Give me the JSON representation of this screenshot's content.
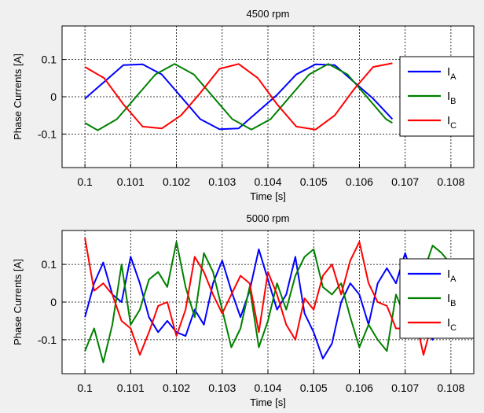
{
  "chart_data": [
    {
      "type": "line",
      "title": "4500 rpm",
      "xlabel": "Time [s]",
      "ylabel": "Phase Currents [A]",
      "xlim": [
        0.0995,
        0.1085
      ],
      "ylim": [
        -0.19,
        0.19
      ],
      "xticks": [
        0.1,
        0.101,
        0.102,
        0.103,
        0.104,
        0.105,
        0.106,
        0.107,
        0.108
      ],
      "xtick_labels": [
        "0.1",
        "0.101",
        "0.102",
        "0.103",
        "0.104",
        "0.105",
        "0.106",
        "0.107",
        "0.108"
      ],
      "yticks": [
        -0.1,
        0,
        0.1
      ],
      "ytick_labels": [
        "-0.1",
        "0",
        "0.1"
      ],
      "grid": true,
      "legend": "right",
      "colors": {
        "I_A": "#0000ff",
        "I_B": "#008000",
        "I_C": "#ff0000"
      },
      "series": [
        {
          "name": "I",
          "sub": "A",
          "x": [
            0.1,
            0.10042,
            0.10084,
            0.10126,
            0.10168,
            0.1021,
            0.10252,
            0.10294,
            0.10336,
            0.10378,
            0.1042,
            0.10462,
            0.10504,
            0.10546,
            0.10588,
            0.1063,
            0.10672
          ],
          "y": [
            -0.005,
            0.04,
            0.085,
            0.087,
            0.06,
            0.0,
            -0.06,
            -0.087,
            -0.085,
            -0.04,
            0.005,
            0.06,
            0.087,
            0.085,
            0.04,
            -0.005,
            -0.06
          ]
        },
        {
          "name": "I",
          "sub": "B",
          "x": [
            0.1,
            0.10028,
            0.1007,
            0.10112,
            0.10154,
            0.10196,
            0.10238,
            0.1028,
            0.10322,
            0.10364,
            0.10406,
            0.10448,
            0.1049,
            0.10532,
            0.10574,
            0.10616,
            0.10658,
            0.10672
          ],
          "y": [
            -0.07,
            -0.09,
            -0.06,
            0.0,
            0.06,
            0.088,
            0.06,
            0.0,
            -0.06,
            -0.088,
            -0.06,
            0.0,
            0.06,
            0.088,
            0.06,
            0.0,
            -0.06,
            -0.07
          ]
        },
        {
          "name": "I",
          "sub": "C",
          "x": [
            0.1,
            0.10042,
            0.10084,
            0.10126,
            0.10168,
            0.1021,
            0.10252,
            0.10294,
            0.10336,
            0.10378,
            0.1042,
            0.10462,
            0.10504,
            0.10546,
            0.10588,
            0.1063,
            0.10672
          ],
          "y": [
            0.08,
            0.05,
            -0.02,
            -0.08,
            -0.085,
            -0.05,
            0.01,
            0.075,
            0.088,
            0.05,
            -0.02,
            -0.08,
            -0.088,
            -0.05,
            0.02,
            0.08,
            0.09
          ]
        }
      ]
    },
    {
      "type": "line",
      "title": "5000 rpm",
      "xlabel": "Time [s]",
      "ylabel": "Phase Currents [A]",
      "xlim": [
        0.0995,
        0.1085
      ],
      "ylim": [
        -0.19,
        0.19
      ],
      "xticks": [
        0.1,
        0.101,
        0.102,
        0.103,
        0.104,
        0.105,
        0.106,
        0.107,
        0.108
      ],
      "xtick_labels": [
        "0.1",
        "0.101",
        "0.102",
        "0.103",
        "0.104",
        "0.105",
        "0.106",
        "0.107",
        "0.108"
      ],
      "yticks": [
        -0.1,
        0,
        0.1
      ],
      "ytick_labels": [
        "-0.1",
        "0",
        "0.1"
      ],
      "grid": true,
      "legend": "right",
      "colors": {
        "I_A": "#0000ff",
        "I_B": "#008000",
        "I_C": "#ff0000"
      },
      "series": [
        {
          "name": "I",
          "sub": "A",
          "x": [
            0.1,
            0.1002,
            0.1004,
            0.1006,
            0.1008,
            0.101,
            0.1012,
            0.1014,
            0.1016,
            0.1018,
            0.102,
            0.1022,
            0.1024,
            0.1026,
            0.1028,
            0.103,
            0.1032,
            0.1034,
            0.1036,
            0.1038,
            0.104,
            0.1042,
            0.1044,
            0.1046,
            0.1048,
            0.105,
            0.1052,
            0.1054,
            0.1056,
            0.1058,
            0.106,
            0.1062,
            0.1064,
            0.1066,
            0.1068,
            0.107,
            0.1072,
            0.1074,
            0.1076,
            0.1078,
            0.108
          ],
          "y": [
            -0.04,
            0.05,
            0.105,
            0.02,
            0.0,
            0.12,
            0.05,
            -0.04,
            -0.08,
            -0.05,
            -0.08,
            -0.09,
            -0.02,
            -0.06,
            0.05,
            0.11,
            0.03,
            -0.04,
            0.03,
            0.14,
            0.06,
            -0.02,
            0.02,
            0.12,
            -0.03,
            -0.08,
            -0.15,
            -0.11,
            0.0,
            0.05,
            0.02,
            -0.06,
            0.05,
            0.09,
            0.05,
            0.13,
            0.05,
            -0.05,
            -0.1,
            0.0,
            0.07
          ]
        },
        {
          "name": "I",
          "sub": "B",
          "x": [
            0.1,
            0.1002,
            0.1004,
            0.1006,
            0.1008,
            0.101,
            0.1012,
            0.1014,
            0.1016,
            0.1018,
            0.102,
            0.1022,
            0.1024,
            0.1026,
            0.1028,
            0.103,
            0.1032,
            0.1034,
            0.1036,
            0.1038,
            0.104,
            0.1042,
            0.1044,
            0.1046,
            0.1048,
            0.105,
            0.1052,
            0.1054,
            0.1056,
            0.1058,
            0.106,
            0.1062,
            0.1064,
            0.1066,
            0.1068,
            0.107,
            0.1072,
            0.1074,
            0.1076,
            0.1078,
            0.108
          ],
          "y": [
            -0.13,
            -0.07,
            -0.16,
            -0.06,
            0.1,
            -0.06,
            -0.02,
            0.06,
            0.08,
            0.04,
            0.16,
            0.04,
            -0.04,
            0.13,
            0.08,
            -0.02,
            -0.12,
            -0.07,
            0.04,
            -0.12,
            -0.05,
            0.05,
            -0.02,
            0.07,
            0.12,
            0.14,
            0.04,
            0.02,
            0.05,
            -0.04,
            -0.12,
            -0.06,
            -0.1,
            -0.13,
            0.02,
            -0.04,
            0.1,
            0.08,
            0.15,
            0.13,
            0.1
          ]
        },
        {
          "name": "I",
          "sub": "C",
          "x": [
            0.1,
            0.1002,
            0.1004,
            0.1006,
            0.1008,
            0.101,
            0.1012,
            0.1014,
            0.1016,
            0.1018,
            0.102,
            0.1022,
            0.1024,
            0.1026,
            0.1028,
            0.103,
            0.1032,
            0.1034,
            0.1036,
            0.1038,
            0.104,
            0.1042,
            0.1044,
            0.1046,
            0.1048,
            0.105,
            0.1052,
            0.1054,
            0.1056,
            0.1058,
            0.106,
            0.1062,
            0.1064,
            0.1066,
            0.1068,
            0.107,
            0.1072,
            0.1074,
            0.1076,
            0.1078,
            0.108
          ],
          "y": [
            0.17,
            0.03,
            0.05,
            0.02,
            -0.05,
            -0.07,
            -0.14,
            -0.08,
            -0.01,
            0.0,
            -0.09,
            -0.02,
            0.12,
            0.08,
            0.02,
            -0.03,
            0.02,
            0.07,
            0.05,
            -0.08,
            0.08,
            0.02,
            -0.06,
            -0.1,
            0.01,
            -0.02,
            0.07,
            0.1,
            0.02,
            0.11,
            0.16,
            0.05,
            0.0,
            -0.01,
            -0.07,
            -0.07,
            -0.03,
            -0.14,
            -0.05,
            -0.07,
            -0.08
          ]
        }
      ]
    }
  ]
}
